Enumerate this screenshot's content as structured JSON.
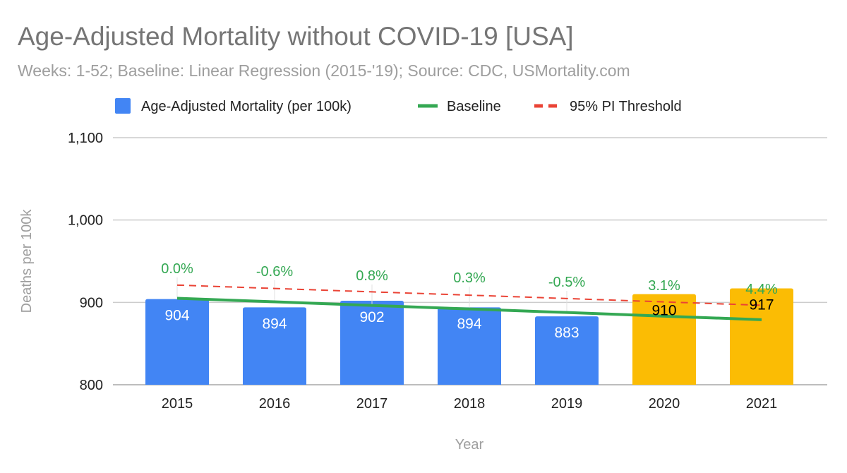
{
  "chart_data": {
    "type": "bar",
    "title": "Age-Adjusted Mortality without COVID-19 [USA]",
    "subtitle": "Weeks: 1-52; Baseline: Linear Regression (2015-'19); Source: CDC, USMortality.com",
    "xlabel": "Year",
    "ylabel": "Deaths per 100k",
    "ylim": [
      800,
      1100
    ],
    "yticks": [
      800,
      900,
      1000,
      1100
    ],
    "ytick_labels": [
      "800",
      "900",
      "1,000",
      "1,100"
    ],
    "grid": true,
    "legend_position": "top",
    "legend": [
      "Age-Adjusted Mortality (per 100k)",
      "Baseline",
      "95% PI Threshold"
    ],
    "categories": [
      "2015",
      "2016",
      "2017",
      "2018",
      "2019",
      "2020",
      "2021"
    ],
    "series": [
      {
        "name": "Age-Adjusted Mortality (per 100k)",
        "type": "bar",
        "values": [
          904,
          894,
          902,
          894,
          883,
          910,
          917
        ],
        "value_labels": [
          "904",
          "894",
          "902",
          "894",
          "883",
          "910",
          "917"
        ],
        "colors": [
          "#4285f4",
          "#4285f4",
          "#4285f4",
          "#4285f4",
          "#4285f4",
          "#fbbc04",
          "#fbbc04"
        ]
      },
      {
        "name": "Baseline",
        "type": "line",
        "color": "#34a853",
        "values": [
          905,
          900.7,
          896.3,
          892,
          887.7,
          883.3,
          879
        ]
      },
      {
        "name": "95% PI Threshold",
        "type": "line",
        "dashed": true,
        "color": "#ea4335",
        "values": [
          921,
          916.9,
          912.8,
          908.8,
          904.7,
          900.6,
          896.5
        ]
      }
    ],
    "annotations": [
      "0.0%",
      "-0.6%",
      "0.8%",
      "0.3%",
      "-0.5%",
      "3.1%",
      "4.4%"
    ],
    "annotation_color": "#34a853"
  }
}
